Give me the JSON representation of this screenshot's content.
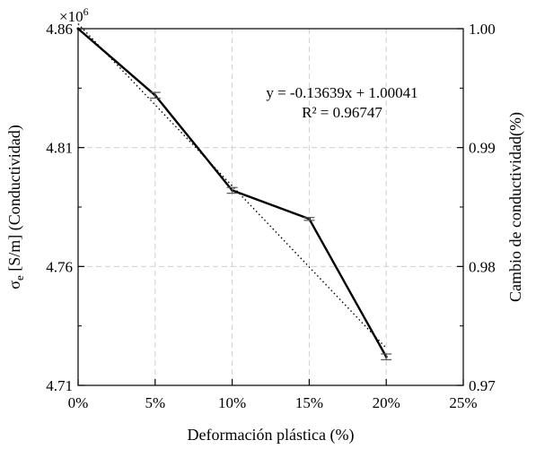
{
  "chart_data": {
    "type": "line",
    "x": [
      0,
      5,
      10,
      15,
      20
    ],
    "x_tick_labels": [
      "0%",
      "5%",
      "10%",
      "15%",
      "20%",
      "25%"
    ],
    "x_ticks": [
      0,
      5,
      10,
      15,
      20,
      25
    ],
    "xlim": [
      0,
      25
    ],
    "xlabel": "Deformación plástica (%)",
    "ylabel_left": {
      "main": "σ",
      "sub": "e",
      "rest": " [S/m] (Conductividad)"
    },
    "ylabel_right": "Cambio de conductividad(%)",
    "ylim_left": [
      4.71,
      4.86
    ],
    "y_ticks_left": [
      4.71,
      4.76,
      4.81,
      4.86
    ],
    "y_tick_labels_left": [
      "4.71",
      "4.76",
      "4.81",
      "4.86"
    ],
    "y_multiplier_label": {
      "base": "×10",
      "exp": "6"
    },
    "ylim_right": [
      0.97,
      1.0
    ],
    "y_ticks_right": [
      0.97,
      0.98,
      0.99,
      1.0
    ],
    "y_tick_labels_right": [
      "0.97",
      "0.98",
      "0.99",
      "1.00"
    ],
    "series": [
      {
        "values": [
          4.86,
          4.832,
          4.792,
          4.78,
          4.722
        ],
        "errors": [
          0.0,
          0.0012,
          0.0012,
          0.0006,
          0.0012
        ],
        "color": "#000000",
        "style": "solid"
      }
    ],
    "trendline": {
      "slope": -0.13639,
      "intercept": 1.00041,
      "x_range": [
        0,
        20
      ],
      "style": "dotted",
      "equation": "y = -0.13639x + 1.00041",
      "r_squared": "R² = 0.96747"
    },
    "grid": true
  }
}
